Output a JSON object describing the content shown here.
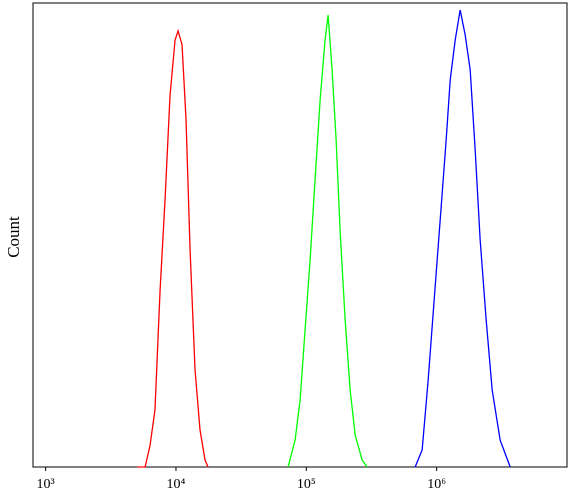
{
  "chart_data": {
    "type": "line",
    "ylabel": "Count",
    "xscale": "log",
    "xlim": [
      800,
      10000000
    ],
    "ylim": [
      0,
      100
    ],
    "xticks": [
      {
        "value": 1000,
        "label": "10³"
      },
      {
        "value": 10000,
        "label": "10⁴"
      },
      {
        "value": 100000,
        "label": "10⁵"
      },
      {
        "value": 1000000,
        "label": "10⁶"
      }
    ],
    "series": [
      {
        "color": "#ff0000",
        "x": [
          5040,
          5800,
          6330,
          6900,
          7550,
          8240,
          9000,
          9840,
          10380,
          11130,
          11940,
          12820,
          14000,
          15290,
          16710,
          17600
        ],
        "values": [
          0,
          0,
          4.7,
          12.3,
          38,
          57.5,
          80,
          92,
          94,
          91,
          75,
          47,
          21,
          8,
          1.5,
          0
        ]
      },
      {
        "color": "#00ff00",
        "x": [
          72400,
          82000,
          89600,
          97800,
          106900,
          116700,
          127600,
          139300,
          146900,
          157700,
          169300,
          181600,
          198600,
          216900,
          237100,
          268100,
          293100
        ],
        "values": [
          0,
          5.8,
          14.4,
          29.5,
          44.6,
          61.9,
          79.1,
          92,
          97.4,
          85.6,
          70.5,
          51,
          31.7,
          16.6,
          6.9,
          1.5,
          0
        ]
      },
      {
        "color": "#0000ff",
        "x": [
          684000,
          774000,
          861000,
          957000,
          1064000,
          1183000,
          1270000,
          1387000,
          1515000,
          1655000,
          1808000,
          1975000,
          2157000,
          2398000,
          2666000,
          3070000,
          3665000
        ],
        "values": [
          0,
          3.7,
          18.8,
          36,
          53.2,
          70.5,
          83.4,
          92,
          98.5,
          93.1,
          85.6,
          68.3,
          48.9,
          31.7,
          16.6,
          5.8,
          0
        ]
      }
    ]
  }
}
